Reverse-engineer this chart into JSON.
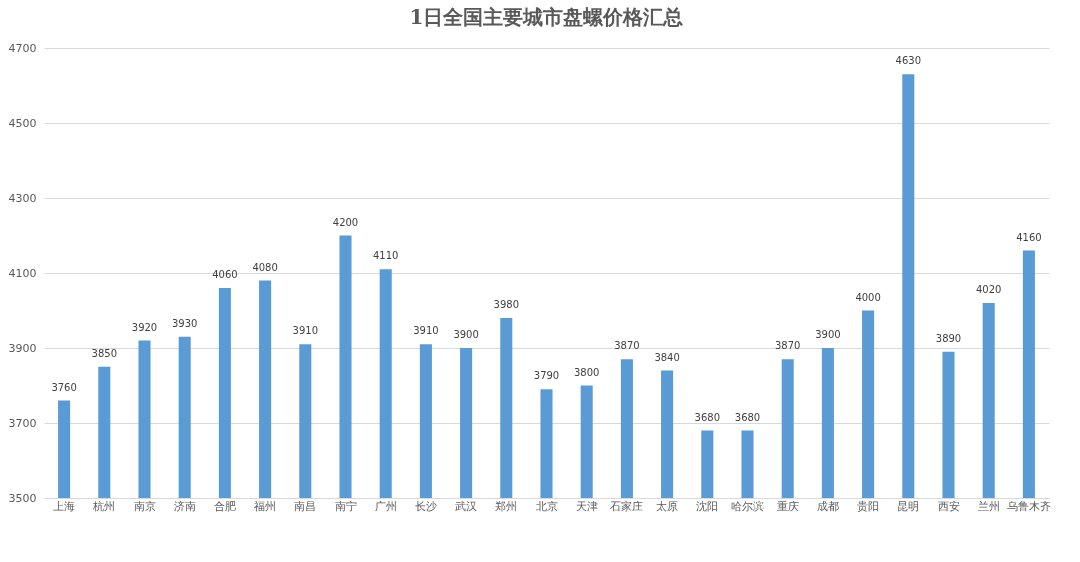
{
  "chart_data": {
    "type": "bar",
    "title": "1日全国主要城市盘螺价格汇总",
    "categories": [
      "上海",
      "杭州",
      "南京",
      "济南",
      "合肥",
      "福州",
      "南昌",
      "南宁",
      "广州",
      "长沙",
      "武汉",
      "郑州",
      "北京",
      "天津",
      "石家庄",
      "太原",
      "沈阳",
      "哈尔滨",
      "重庆",
      "成都",
      "贵阳",
      "昆明",
      "西安",
      "兰州",
      "乌鲁木齐"
    ],
    "values": [
      3760,
      3850,
      3920,
      3930,
      4060,
      4080,
      3910,
      4200,
      4110,
      3910,
      3900,
      3980,
      3790,
      3800,
      3870,
      3840,
      3680,
      3680,
      3870,
      3900,
      4000,
      4630,
      3890,
      4020,
      4160
    ],
    "color": "#5b9bd5",
    "ylim": [
      3500,
      4700
    ],
    "yticks": [
      3500,
      3700,
      3900,
      4100,
      4300,
      4500,
      4700
    ],
    "grid": "y",
    "data_labels": true
  }
}
